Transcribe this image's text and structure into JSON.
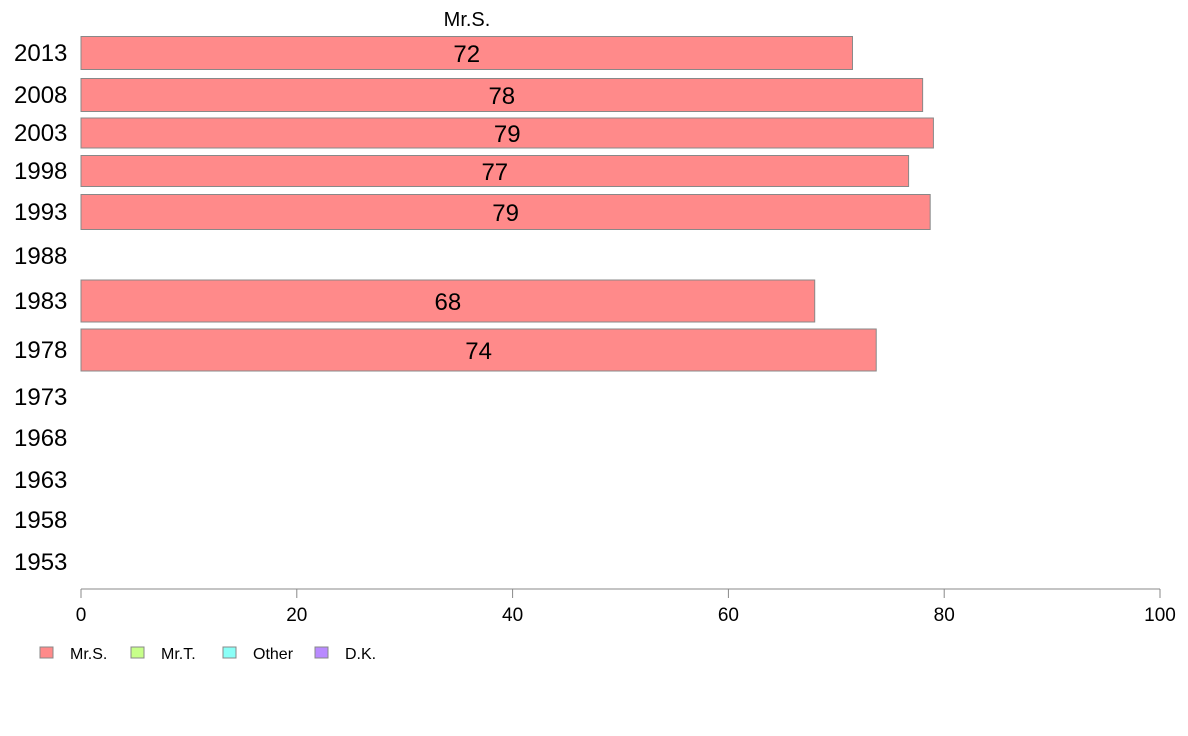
{
  "chart_data": {
    "type": "bar",
    "orientation": "horizontal",
    "stacked": true,
    "categories": [
      "2013",
      "2008",
      "2003",
      "1998",
      "1993",
      "1988",
      "1983",
      "1978",
      "1973",
      "1968",
      "1963",
      "1958",
      "1953"
    ],
    "series": [
      {
        "name": "Mr.S.",
        "color": "#ff8a8a",
        "values": [
          71.5,
          78,
          79,
          76.7,
          78.7,
          null,
          68,
          73.7,
          null,
          null,
          null,
          null,
          null
        ],
        "labels": [
          "72",
          "78",
          "79",
          "77",
          "79",
          "",
          "68",
          "74",
          "",
          "",
          "",
          "",
          ""
        ]
      },
      {
        "name": "Mr.T.",
        "color": "#c7ff8a",
        "values": [
          null,
          null,
          null,
          null,
          null,
          null,
          null,
          null,
          null,
          null,
          null,
          null,
          null
        ]
      },
      {
        "name": "Other",
        "color": "#8afff7",
        "values": [
          null,
          null,
          null,
          null,
          null,
          null,
          null,
          null,
          null,
          null,
          null,
          null,
          null
        ]
      },
      {
        "name": "D.K.",
        "color": "#b98aff",
        "values": [
          null,
          null,
          null,
          null,
          null,
          null,
          null,
          null,
          null,
          null,
          null,
          null,
          null
        ]
      }
    ],
    "series_title": "Mr.S.",
    "xlim": [
      0,
      100
    ],
    "xticks": [
      0,
      20,
      40,
      60,
      80,
      100
    ],
    "xtick_labels": [
      "0",
      "20",
      "40",
      "60",
      "80",
      "100"
    ],
    "legend_position": "bottom-left",
    "grid": false,
    "title": "",
    "xlabel": "",
    "ylabel": ""
  }
}
